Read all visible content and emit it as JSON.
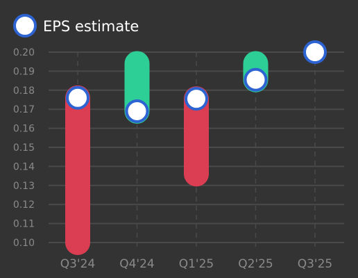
{
  "chart_data": {
    "type": "bar",
    "legend": {
      "label": "EPS estimate",
      "position": "top-left"
    },
    "categories": [
      "Q3'24",
      "Q4'24",
      "Q1'25",
      "Q2'25",
      "Q3'25"
    ],
    "series": [
      {
        "name": "EPS estimate",
        "values": [
          0.176,
          0.169,
          0.1755,
          0.1855,
          0.2
        ]
      }
    ],
    "actual_range_bars": [
      {
        "from": 0.176,
        "to": 0.1
      },
      {
        "from": 0.169,
        "to": 0.194
      },
      {
        "from": 0.1755,
        "to": 0.136
      },
      {
        "from": 0.1855,
        "to": 0.194
      },
      null
    ],
    "yticks": [
      "0.10",
      "0.11",
      "0.12",
      "0.13",
      "0.14",
      "0.15",
      "0.16",
      "0.17",
      "0.18",
      "0.19",
      "0.20"
    ],
    "ylim": [
      0.1,
      0.2
    ],
    "grid": true,
    "colors": {
      "background": "#333333",
      "grid": "#4a4a4a",
      "up": "#2ecf97",
      "down": "#db3d52",
      "marker_fill": "#ffffff",
      "marker_stroke": "#2d64d2"
    }
  }
}
